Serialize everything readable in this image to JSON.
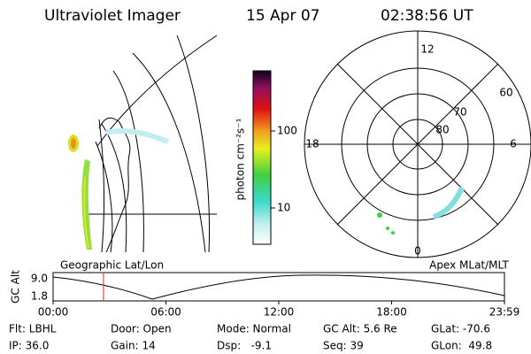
{
  "header": {
    "title": "Ultraviolet Imager",
    "date": "15 Apr 07",
    "time": "02:38:56 UT"
  },
  "colorbar": {
    "label": "photon cm⁻²s⁻¹",
    "ticks": [
      "100",
      "10"
    ]
  },
  "panels": {
    "left": "Geographic Lat/Lon",
    "right": "Apex MLat/MLT"
  },
  "polar": {
    "mlt_labels": [
      "12",
      "18",
      "6",
      "0"
    ],
    "lat_labels": [
      "60",
      "70",
      "80"
    ]
  },
  "timeline": {
    "ylabel": "GC Alt",
    "yticks": [
      "9.0",
      "1.8"
    ],
    "xticks": [
      "00:00",
      "06:00",
      "12:00",
      "18:00",
      "23:59"
    ]
  },
  "status": [
    [
      "Flt: LBHL",
      "Door: Open",
      "Mode: Normal",
      "GC Alt: 5.6 Re",
      "GLat: -70.6"
    ],
    [
      "IP: 36.0",
      "Gain: 14",
      "Dsp:   -9.1",
      "Seq: 39",
      "GLon:  49.8"
    ]
  ]
}
